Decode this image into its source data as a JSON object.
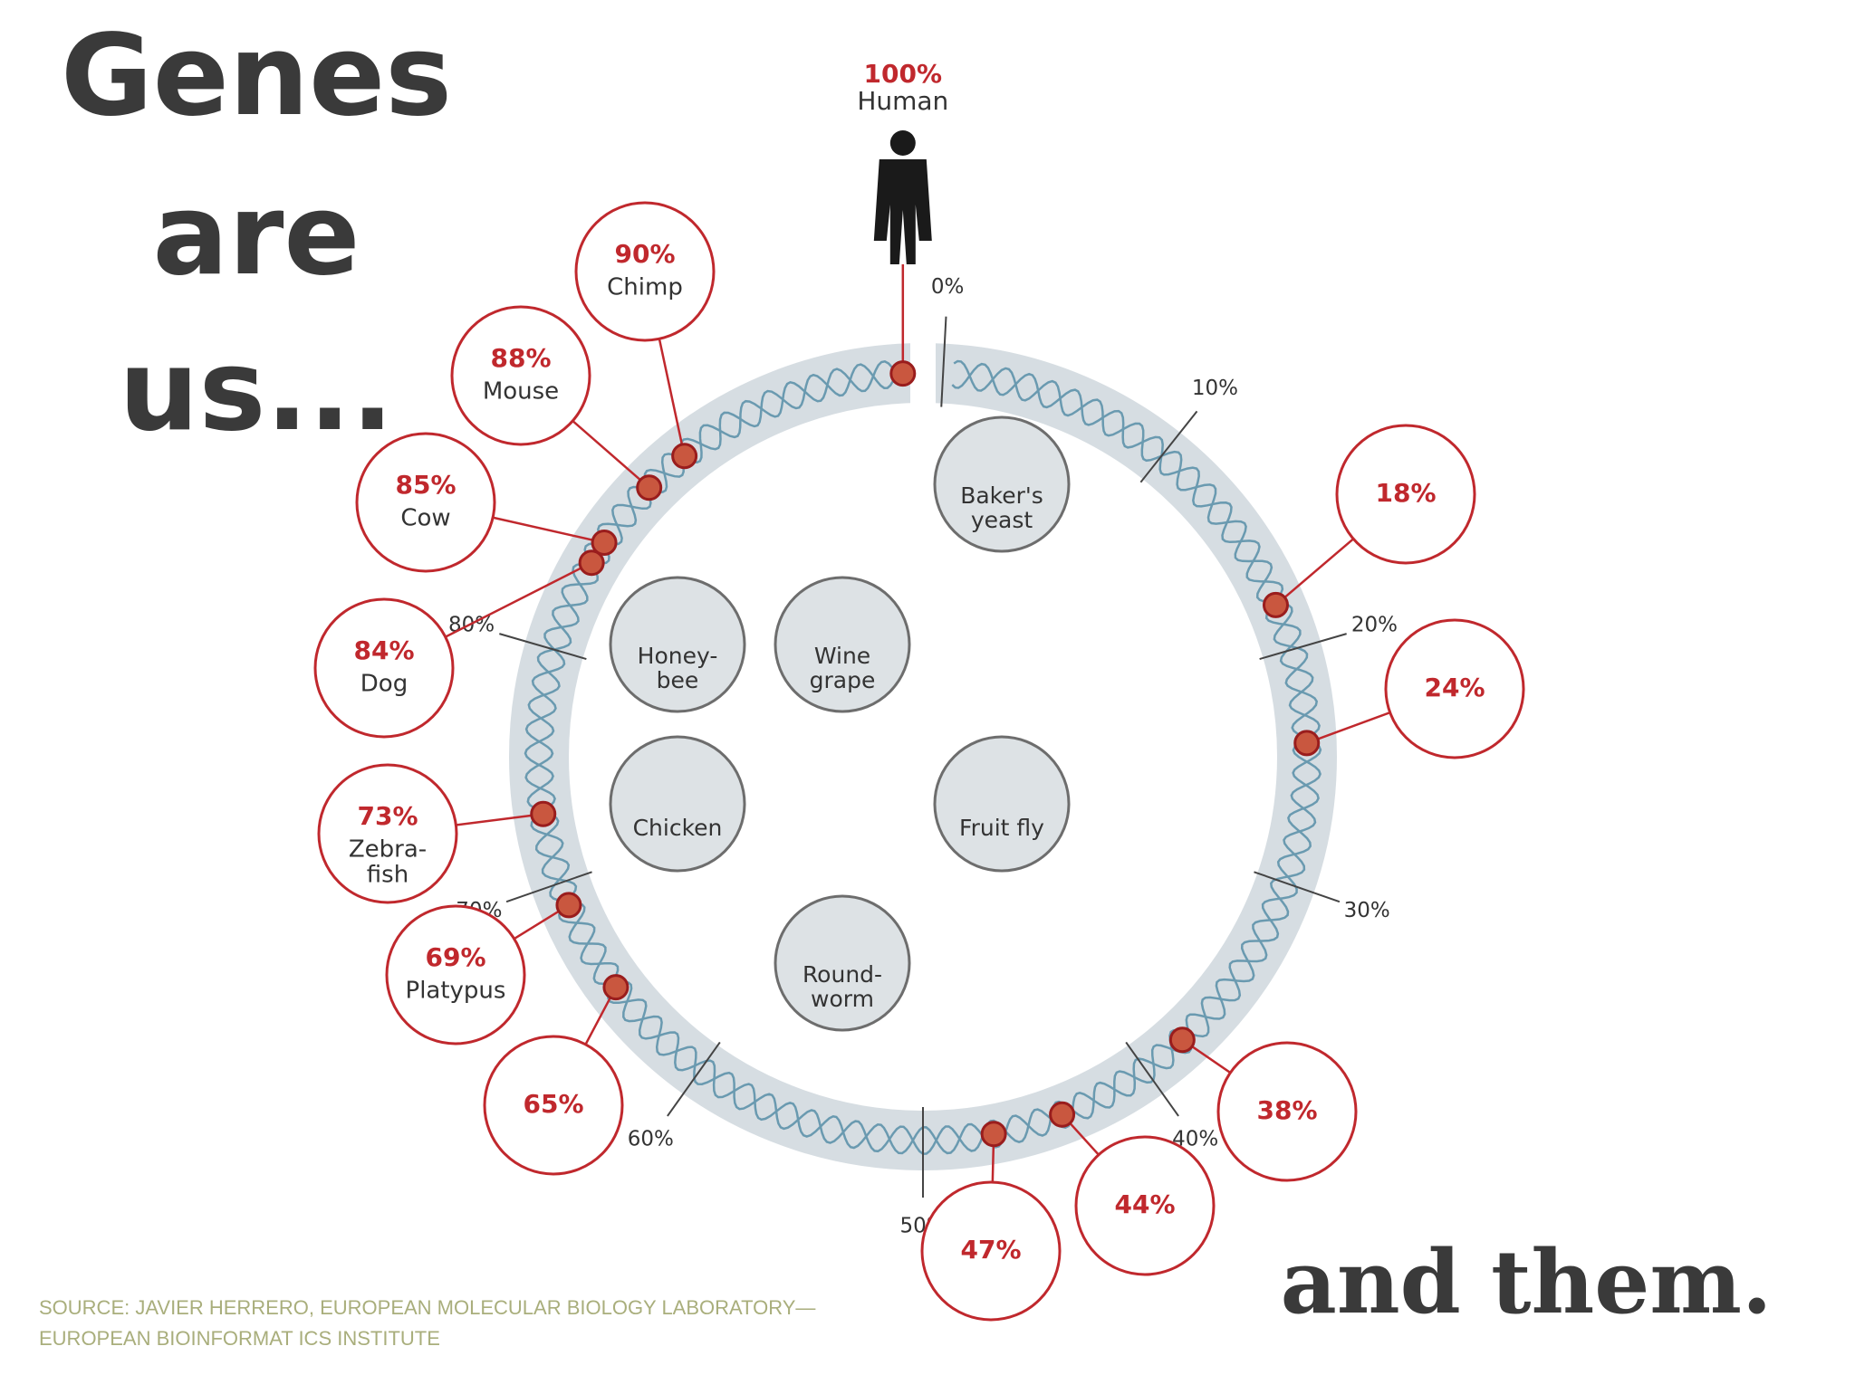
{
  "title_lines": [
    "Genes",
    "are",
    "us..."
  ],
  "closing": "and them.",
  "source_lines": [
    "SOURCE: JAVIER HERRERO, EUROPEAN MOLECULAR BIOLOGY LABORATORY—",
    "EUROPEAN BIOINFORMAT ICS INSTITUTE"
  ],
  "reference": {
    "value": 100,
    "label": "100%",
    "name": "Human"
  },
  "scale_ticks": [
    {
      "value": 0,
      "label": "0%"
    },
    {
      "value": 10,
      "label": "10%"
    },
    {
      "value": 20,
      "label": "20%"
    },
    {
      "value": 30,
      "label": "30%"
    },
    {
      "value": 40,
      "label": "40%"
    },
    {
      "value": 50,
      "label": "50%"
    },
    {
      "value": 60,
      "label": "60%"
    },
    {
      "value": 70,
      "label": "70%"
    },
    {
      "value": 80,
      "label": "80%"
    }
  ],
  "organisms": [
    {
      "share": {
        "value": 18,
        "label": "18%"
      }
    },
    {
      "share": {
        "value": 24,
        "label": "24%"
      }
    },
    {
      "share": {
        "value": 38,
        "label": "38%"
      }
    },
    {
      "share": {
        "value": 44,
        "label": "44%"
      }
    },
    {
      "share": {
        "value": 47,
        "label": "47%"
      }
    },
    {
      "share": {
        "value": 65,
        "label": "65%"
      }
    },
    {
      "name": [
        "Platypus"
      ],
      "share": {
        "value": 69,
        "label": "69%"
      }
    },
    {
      "name": [
        "Zebra-",
        "fish"
      ],
      "share": {
        "value": 73,
        "label": "73%"
      }
    },
    {
      "name": [
        "Dog"
      ],
      "share": {
        "value": 84,
        "label": "84%"
      }
    },
    {
      "name": [
        "Cow"
      ],
      "share": {
        "value": 85,
        "label": "85%"
      }
    },
    {
      "name": [
        "Mouse"
      ],
      "share": {
        "value": 88,
        "label": "88%"
      }
    },
    {
      "name": [
        "Chimp"
      ],
      "share": {
        "value": 90,
        "label": "90%"
      }
    }
  ],
  "inner_organisms": [
    [
      "Baker's",
      "yeast"
    ],
    [
      "Honey-",
      "bee"
    ],
    [
      "Wine",
      "grape"
    ],
    [
      "Chicken"
    ],
    [
      "Fruit fly"
    ],
    [
      "Round-",
      "worm"
    ]
  ]
}
